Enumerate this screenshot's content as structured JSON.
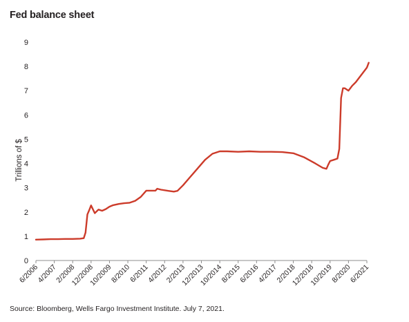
{
  "chart_data": {
    "type": "line",
    "title": "Fed balance sheet",
    "ylabel": "Trillions of $",
    "xlabel": "",
    "source": "Source: Bloomberg, Wells Fargo Investment Institute. July 7, 2021.",
    "ylim": [
      0,
      9
    ],
    "yticks": [
      "0",
      "1",
      "2",
      "3",
      "4",
      "5",
      "6",
      "7",
      "8",
      "9"
    ],
    "xticks": [
      "6/2006",
      "4/2007",
      "2/2008",
      "12/2008",
      "10/2009",
      "8/2010",
      "6/2011",
      "4/2012",
      "2/2013",
      "12/2013",
      "10/2014",
      "8/2015",
      "6/2016",
      "4/2017",
      "2/2018",
      "12/2018",
      "10/2019",
      "8/2020",
      "6/2021"
    ],
    "grid": false,
    "legend": "none",
    "line_color": "#cc3b2a",
    "series": [
      {
        "x": [
          "6/2006",
          "10/2006",
          "2/2007",
          "6/2007",
          "10/2007",
          "2/2008",
          "6/2008",
          "8/2008",
          "9/2008",
          "10/2008",
          "11/2008",
          "12/2008",
          "2/2009",
          "4/2009",
          "6/2009",
          "8/2009",
          "10/2009",
          "12/2009",
          "3/2010",
          "6/2010",
          "9/2010",
          "12/2010",
          "3/2011",
          "6/2011",
          "9/2011",
          "11/2011",
          "12/2011",
          "2/2012",
          "6/2012",
          "9/2012",
          "11/2012",
          "2/2013",
          "6/2013",
          "10/2013",
          "2/2014",
          "6/2014",
          "10/2014",
          "2/2015",
          "8/2015",
          "2/2016",
          "8/2016",
          "2/2017",
          "8/2017",
          "2/2018",
          "8/2018",
          "2/2019",
          "6/2019",
          "8/2019",
          "9/2019",
          "10/2019",
          "12/2019",
          "2/2020",
          "3/2020",
          "4/2020",
          "5/2020",
          "6/2020",
          "8/2020",
          "10/2020",
          "12/2020",
          "3/2021",
          "6/2021",
          "7/2021"
        ],
        "values": [
          0.86,
          0.87,
          0.88,
          0.88,
          0.89,
          0.89,
          0.9,
          0.92,
          1.15,
          1.9,
          2.08,
          2.27,
          1.95,
          2.1,
          2.05,
          2.12,
          2.22,
          2.28,
          2.33,
          2.36,
          2.38,
          2.46,
          2.62,
          2.88,
          2.88,
          2.88,
          2.96,
          2.92,
          2.87,
          2.84,
          2.87,
          3.1,
          3.45,
          3.8,
          4.15,
          4.4,
          4.5,
          4.5,
          4.48,
          4.5,
          4.48,
          4.48,
          4.47,
          4.42,
          4.25,
          4.0,
          3.82,
          3.78,
          3.95,
          4.1,
          4.15,
          4.2,
          4.6,
          6.7,
          7.1,
          7.1,
          7.0,
          7.2,
          7.35,
          7.65,
          7.95,
          8.15
        ]
      }
    ]
  }
}
